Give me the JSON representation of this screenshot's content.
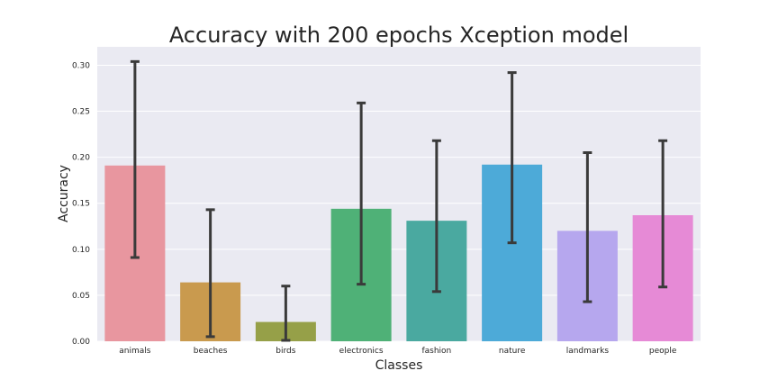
{
  "chart_data": {
    "type": "bar",
    "title": "Accuracy with 200 epochs Xception model",
    "xlabel": "Classes",
    "ylabel": "Accuracy",
    "ylim": [
      0,
      0.32
    ],
    "yticks": [
      "0.00",
      "0.05",
      "0.10",
      "0.15",
      "0.20",
      "0.25",
      "0.30"
    ],
    "grid": true,
    "categories": [
      "animals",
      "beaches",
      "birds",
      "electronics",
      "fashion",
      "nature",
      "landmarks",
      "people"
    ],
    "values": [
      0.191,
      0.064,
      0.021,
      0.144,
      0.131,
      0.192,
      0.12,
      0.137
    ],
    "error_low": [
      0.091,
      0.005,
      0.001,
      0.062,
      0.054,
      0.107,
      0.043,
      0.059
    ],
    "error_high": [
      0.304,
      0.143,
      0.06,
      0.259,
      0.218,
      0.292,
      0.205,
      0.218
    ],
    "colors": [
      "#e8969f",
      "#c99a4e",
      "#96a048",
      "#4fb177",
      "#4aa9a0",
      "#4daad8",
      "#b6a7ee",
      "#e68ad6"
    ],
    "background": "#eaeaf2",
    "error_color": "#3a3a3a"
  }
}
